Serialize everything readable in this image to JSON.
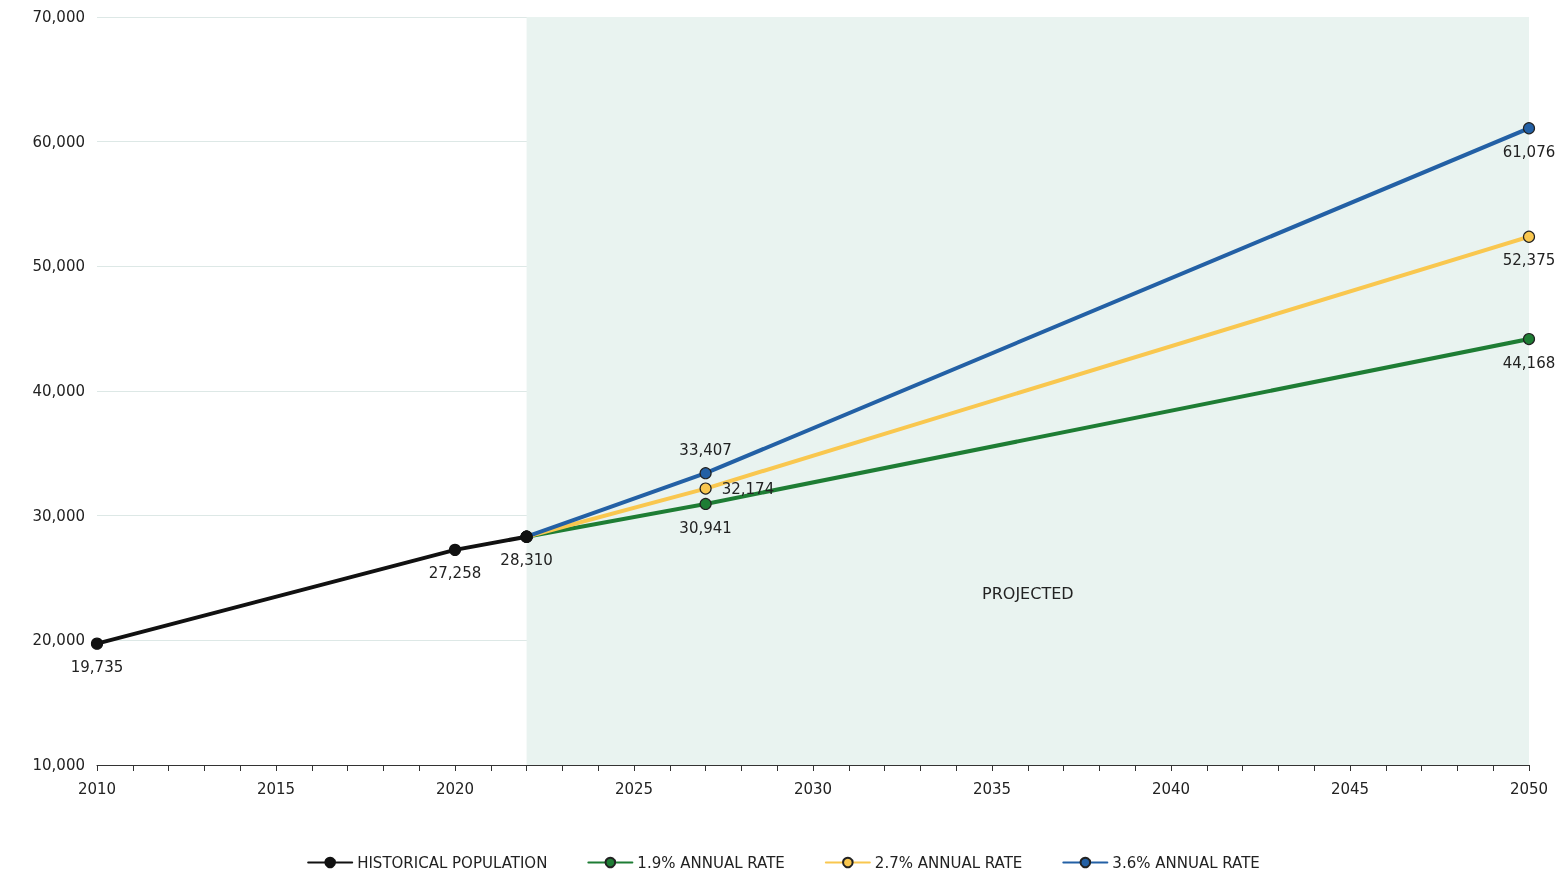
{
  "chart_data": {
    "type": "line",
    "xlim": [
      2010,
      2050
    ],
    "xticks": [
      2010,
      {
        "value": 2011,
        "label": null
      },
      {
        "value": 2012,
        "label": null
      },
      {
        "value": 2013,
        "label": null
      },
      {
        "value": 2014,
        "label": null
      },
      2015,
      {
        "value": 2016,
        "label": null
      },
      {
        "value": 2017,
        "label": null
      },
      {
        "value": 2018,
        "label": null
      },
      {
        "value": 2019,
        "label": null
      },
      2020,
      {
        "value": 2021,
        "label": null
      },
      {
        "value": 2022,
        "label": null
      },
      {
        "value": 2023,
        "label": null
      },
      {
        "value": 2024,
        "label": null
      },
      2025,
      {
        "value": 2026,
        "label": null
      },
      {
        "value": 2027,
        "label": null
      },
      {
        "value": 2028,
        "label": null
      },
      {
        "value": 2029,
        "label": null
      },
      2030,
      {
        "value": 2031,
        "label": null
      },
      {
        "value": 2032,
        "label": null
      },
      {
        "value": 2033,
        "label": null
      },
      {
        "value": 2034,
        "label": null
      },
      2035,
      {
        "value": 2036,
        "label": null
      },
      {
        "value": 2037,
        "label": null
      },
      {
        "value": 2038,
        "label": null
      },
      {
        "value": 2039,
        "label": null
      },
      2040,
      {
        "value": 2041,
        "label": null
      },
      {
        "value": 2042,
        "label": null
      },
      {
        "value": 2043,
        "label": null
      },
      {
        "value": 2044,
        "label": null
      },
      2045,
      {
        "value": 2046,
        "label": null
      },
      {
        "value": 2047,
        "label": null
      },
      {
        "value": 2048,
        "label": null
      },
      {
        "value": 2049,
        "label": null
      },
      2050
    ],
    "ylim": [
      10000,
      70000
    ],
    "yticks": [
      {
        "value": 10000,
        "label": "10,000"
      },
      {
        "value": 20000,
        "label": "20,000"
      },
      {
        "value": 30000,
        "label": "30,000"
      },
      {
        "value": 40000,
        "label": "40,000"
      },
      {
        "value": 50000,
        "label": "50,000"
      },
      {
        "value": 60000,
        "label": "60,000"
      },
      {
        "value": 70000,
        "label": "70,000"
      }
    ],
    "grid": "y",
    "legend": "bottom",
    "marker": "circle",
    "line_style": "solid",
    "bands": [
      {
        "axis": "x",
        "from": 2022,
        "to": 2050,
        "label": "PROJECTED",
        "color": "#e9f3f0"
      }
    ],
    "series": [
      {
        "name": "1.9% ANNUAL RATE",
        "color": "#1e7d34",
        "x": [
          2022,
          2027,
          2050
        ],
        "values": [
          28310,
          30941,
          44168
        ],
        "value_labels": [
          null,
          "30,941",
          "44,168"
        ]
      },
      {
        "name": "2.7% ANNUAL RATE",
        "color": "#f9c74f",
        "x": [
          2022,
          2027,
          2050
        ],
        "values": [
          28310,
          32174,
          52375
        ],
        "value_labels": [
          null,
          "32,174",
          "52,375"
        ]
      },
      {
        "name": "3.6% ANNUAL RATE",
        "color": "#2360a5",
        "x": [
          2022,
          2027,
          2050
        ],
        "values": [
          28310,
          33407,
          61076
        ],
        "value_labels": [
          null,
          "33,407",
          "61,076"
        ]
      },
      {
        "name": "HISTORICAL POPULATION",
        "color": "#111111",
        "x": [
          2010,
          2020,
          2022
        ],
        "values": [
          19735,
          27258,
          28310
        ],
        "value_labels": [
          "19,735",
          "27,258",
          "28,310"
        ]
      }
    ]
  }
}
